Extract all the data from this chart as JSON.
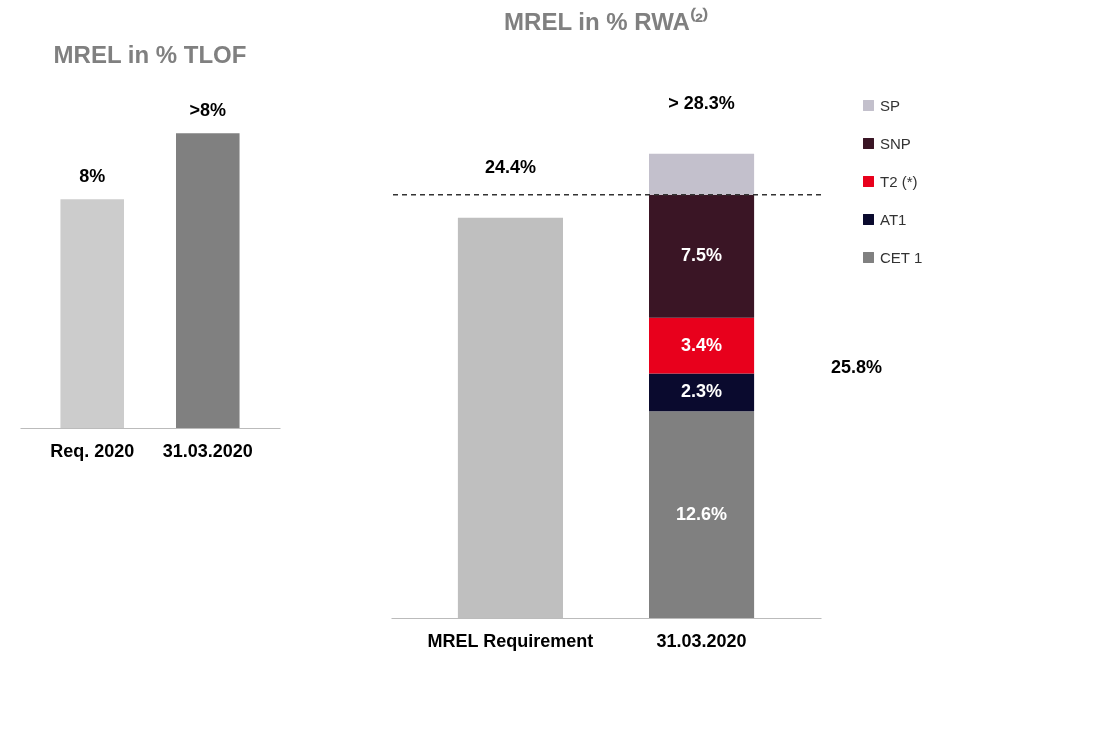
{
  "chart_data": [
    {
      "type": "bar",
      "title": "MREL in % TLOF",
      "categories": [
        "Req. 2020",
        "31.03.2020"
      ],
      "values": [
        8,
        10.3
      ],
      "colors": [
        "#cccccc",
        "#808080"
      ],
      "value_labels": [
        "8%",
        ">8%"
      ]
    },
    {
      "type": "bar",
      "title": "MREL in % RWA⁽²⁾",
      "categories": [
        "MREL Requirement",
        "31.03.2020"
      ],
      "stacked": true,
      "legend": "right",
      "series": [
        {
          "color": "#bfbfbf",
          "values": [
            24.4,
            null
          ]
        },
        {
          "name": "CET 1",
          "color": "#808080",
          "values": [
            null,
            12.6
          ],
          "value_labels": [
            null,
            "12.6%"
          ]
        },
        {
          "name": "AT1",
          "color": "#0a0a2e",
          "values": [
            null,
            2.3
          ],
          "value_labels": [
            null,
            "2.3%"
          ]
        },
        {
          "name": "T2 (*)",
          "color": "#e8001c",
          "values": [
            null,
            3.4
          ],
          "value_labels": [
            null,
            "3.4%"
          ]
        },
        {
          "name": "SNP",
          "color": "#3a1525",
          "values": [
            null,
            7.5
          ],
          "value_labels": [
            null,
            "7.5%"
          ]
        },
        {
          "name": "SP",
          "color": "#c3c0cc",
          "values": [
            null,
            2.5
          ]
        }
      ],
      "totals": [
        "24.4%",
        "> 28.3%"
      ],
      "ref_lines": [
        {
          "axis": "y",
          "value": 25.8,
          "line_style": "dashed",
          "color": "#333333"
        }
      ],
      "annotations": [
        "25.8%"
      ]
    }
  ]
}
